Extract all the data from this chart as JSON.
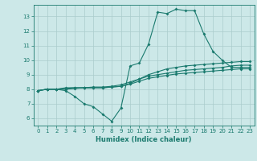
{
  "xlabel": "Humidex (Indice chaleur)",
  "x_values": [
    0,
    1,
    2,
    3,
    4,
    5,
    6,
    7,
    8,
    9,
    10,
    11,
    12,
    13,
    14,
    15,
    16,
    17,
    18,
    19,
    20,
    21,
    22,
    23
  ],
  "line_max": [
    7.9,
    8.0,
    8.0,
    7.9,
    7.5,
    7.0,
    6.8,
    6.3,
    5.8,
    6.7,
    9.6,
    9.8,
    11.1,
    13.3,
    13.2,
    13.5,
    13.4,
    13.4,
    11.8,
    10.6,
    10.0,
    9.5,
    9.5,
    9.5
  ],
  "line_mean": [
    7.9,
    8.0,
    8.0,
    8.1,
    8.1,
    8.1,
    8.1,
    8.1,
    8.15,
    8.2,
    8.4,
    8.7,
    9.0,
    9.2,
    9.4,
    9.5,
    9.6,
    9.65,
    9.7,
    9.75,
    9.8,
    9.85,
    9.9,
    9.9
  ],
  "line_min": [
    7.9,
    8.0,
    8.0,
    8.05,
    8.1,
    8.1,
    8.15,
    8.15,
    8.2,
    8.3,
    8.5,
    8.7,
    8.9,
    9.0,
    9.1,
    9.2,
    9.3,
    9.35,
    9.4,
    9.45,
    9.5,
    9.6,
    9.65,
    9.65
  ],
  "line_extra": [
    7.9,
    8.0,
    8.0,
    8.0,
    8.05,
    8.1,
    8.1,
    8.1,
    8.15,
    8.2,
    8.35,
    8.55,
    8.75,
    8.85,
    8.95,
    9.05,
    9.1,
    9.15,
    9.2,
    9.25,
    9.3,
    9.35,
    9.4,
    9.4
  ],
  "line_color": "#1a7a6e",
  "bg_color": "#cce8e8",
  "grid_color": "#aacccc",
  "ylim": [
    5.5,
    13.8
  ],
  "xlim": [
    -0.5,
    23.5
  ],
  "yticks": [
    6,
    7,
    8,
    9,
    10,
    11,
    12,
    13
  ],
  "xticks": [
    0,
    1,
    2,
    3,
    4,
    5,
    6,
    7,
    8,
    9,
    10,
    11,
    12,
    13,
    14,
    15,
    16,
    17,
    18,
    19,
    20,
    21,
    22,
    23
  ]
}
